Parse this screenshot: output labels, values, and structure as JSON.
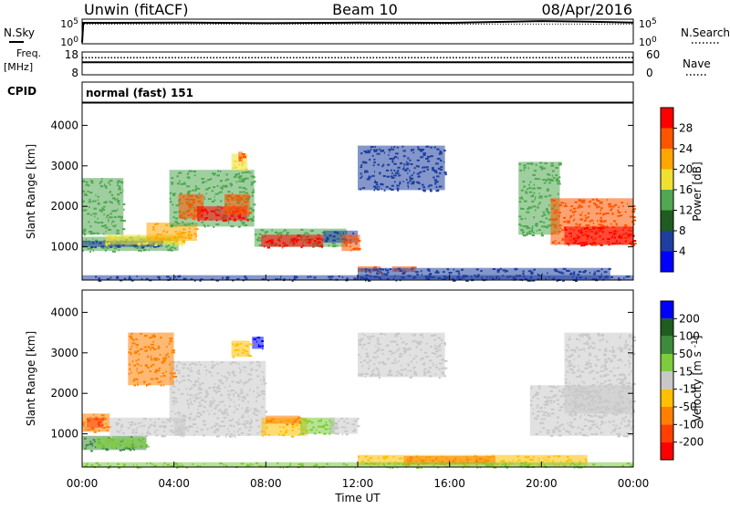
{
  "header": {
    "site": "Unwin (fitACF)",
    "beam": "Beam 10",
    "date": "08/Apr/2016"
  },
  "nsky_panel": {
    "label": "N.Sky",
    "right_label": "N.Search",
    "left_ticks": [
      "10^5",
      "10^0"
    ],
    "right_ticks": [
      "10^5",
      "10^0"
    ]
  },
  "freq_panel": {
    "label_line1": "Freq.",
    "label_line2": "[MHz]",
    "right_label": "Nave",
    "left_ticks": [
      "18",
      "8"
    ],
    "right_ticks": [
      "60",
      "0"
    ]
  },
  "cpid": {
    "label": "CPID",
    "mode": "normal (fast) 151"
  },
  "chart_data": [
    {
      "type": "heatmap",
      "ylabel": "Slant Range [km]",
      "xlabel": "",
      "x_range_hours": [
        0,
        24
      ],
      "ylim": [
        180,
        4550
      ],
      "yticks": [
        "1000",
        "2000",
        "3000",
        "4000"
      ],
      "colorbar": {
        "label": "Power [dB]",
        "ticks": [
          "28",
          "24",
          "20",
          "16",
          "12",
          "8",
          "4"
        ],
        "colors": [
          "#ff0000",
          "#ff5500",
          "#ffa600",
          "#f0e030",
          "#50a850",
          "#1f5c1f",
          "#1f3f9f",
          "#0000ff"
        ]
      }
    },
    {
      "type": "heatmap",
      "ylabel": "Slant Range [km]",
      "xlabel": "Time UT",
      "x_range_hours": [
        0,
        24
      ],
      "ylim": [
        180,
        4550
      ],
      "yticks": [
        "1000",
        "2000",
        "3000",
        "4000"
      ],
      "xticks": [
        "00:00",
        "04:00",
        "08:00",
        "12:00",
        "16:00",
        "20:00",
        "00:00"
      ],
      "colorbar": {
        "label": "Velocity [m s^-1]",
        "ticks": [
          "200",
          "100",
          "50",
          "15",
          "-15",
          "-50",
          "-100",
          "-200"
        ],
        "colors": [
          "#0000ff",
          "#1f5c1f",
          "#3c8c3c",
          "#7ccc3c",
          "#c8c8c8",
          "#ffc000",
          "#ff8000",
          "#ff4000",
          "#ff0000"
        ]
      }
    }
  ],
  "regions": {
    "power": [
      {
        "x": 0.0,
        "x2": 4.2,
        "y1": 900,
        "y2": 1250,
        "color": "#50a850"
      },
      {
        "x": 0.0,
        "x2": 3.5,
        "y1": 1000,
        "y2": 1150,
        "color": "#1f3f9f"
      },
      {
        "x": 1.0,
        "x2": 4.5,
        "y1": 1050,
        "y2": 1300,
        "color": "#f0e030"
      },
      {
        "x": 2.8,
        "x2": 5.0,
        "y1": 1150,
        "y2": 1600,
        "color": "#ffa600"
      },
      {
        "x": 0.0,
        "x2": 1.8,
        "y1": 1300,
        "y2": 2700,
        "color": "#50a850"
      },
      {
        "x": 3.8,
        "x2": 7.5,
        "y1": 1500,
        "y2": 2900,
        "color": "#50a850"
      },
      {
        "x": 4.2,
        "x2": 5.3,
        "y1": 1700,
        "y2": 2300,
        "color": "#ff5500"
      },
      {
        "x": 5.0,
        "x2": 7.2,
        "y1": 1650,
        "y2": 2000,
        "color": "#ff0000"
      },
      {
        "x": 6.2,
        "x2": 7.3,
        "y1": 1800,
        "y2": 2300,
        "color": "#ff5500"
      },
      {
        "x": 6.5,
        "x2": 7.2,
        "y1": 2900,
        "y2": 3300,
        "color": "#f0e030"
      },
      {
        "x": 6.8,
        "x2": 7.0,
        "y1": 3100,
        "y2": 3350,
        "color": "#ff5500"
      },
      {
        "x": 7.5,
        "x2": 11.5,
        "y1": 1000,
        "y2": 1450,
        "color": "#50a850"
      },
      {
        "x": 7.8,
        "x2": 10.5,
        "y1": 1000,
        "y2": 1300,
        "color": "#ff0000"
      },
      {
        "x": 10.5,
        "x2": 12.0,
        "y1": 1100,
        "y2": 1400,
        "color": "#1f3f9f"
      },
      {
        "x": 11.3,
        "x2": 12.1,
        "y1": 900,
        "y2": 1300,
        "color": "#ff5500"
      },
      {
        "x": 12.0,
        "x2": 13.0,
        "y1": 380,
        "y2": 520,
        "color": "#ff5500"
      },
      {
        "x": 13.5,
        "x2": 14.5,
        "y1": 380,
        "y2": 520,
        "color": "#ff5500"
      },
      {
        "x": 12.0,
        "x2": 23.0,
        "y1": 200,
        "y2": 480,
        "color": "#1f3f9f"
      },
      {
        "x": 12.0,
        "x2": 15.8,
        "y1": 2400,
        "y2": 3500,
        "color": "#1f3f9f"
      },
      {
        "x": 19.0,
        "x2": 20.8,
        "y1": 1300,
        "y2": 3100,
        "color": "#50a850"
      },
      {
        "x": 20.4,
        "x2": 24.0,
        "y1": 1050,
        "y2": 2200,
        "color": "#ff5500"
      },
      {
        "x": 21.0,
        "x2": 24.0,
        "y1": 1050,
        "y2": 1500,
        "color": "#ff0000"
      },
      {
        "x": 0.0,
        "x2": 24.0,
        "y1": 180,
        "y2": 300,
        "color": "#1f3f9f"
      }
    ],
    "velocity": [
      {
        "x": 0.0,
        "x2": 1.2,
        "y1": 1050,
        "y2": 1500,
        "color": "#ff8000"
      },
      {
        "x": 0.2,
        "x2": 0.9,
        "y1": 1150,
        "y2": 1400,
        "color": "#ff4000"
      },
      {
        "x": 0.0,
        "x2": 2.8,
        "y1": 600,
        "y2": 950,
        "color": "#3c8c3c"
      },
      {
        "x": 0.6,
        "x2": 2.8,
        "y1": 650,
        "y2": 900,
        "color": "#7ccc3c"
      },
      {
        "x": 1.2,
        "x2": 4.5,
        "y1": 950,
        "y2": 1400,
        "color": "#c8c8c8"
      },
      {
        "x": 3.8,
        "x2": 8.0,
        "y1": 1350,
        "y2": 2800,
        "color": "#c8c8c8"
      },
      {
        "x": 4.0,
        "x2": 8.0,
        "y1": 950,
        "y2": 1350,
        "color": "#c8c8c8"
      },
      {
        "x": 7.8,
        "x2": 9.8,
        "y1": 950,
        "y2": 1400,
        "color": "#ffc000"
      },
      {
        "x": 8.0,
        "x2": 9.5,
        "y1": 1250,
        "y2": 1450,
        "color": "#ff8000"
      },
      {
        "x": 9.5,
        "x2": 11.0,
        "y1": 1000,
        "y2": 1400,
        "color": "#7ccc3c"
      },
      {
        "x": 10.8,
        "x2": 12.0,
        "y1": 1000,
        "y2": 1400,
        "color": "#c8c8c8"
      },
      {
        "x": 7.4,
        "x2": 7.9,
        "y1": 3100,
        "y2": 3400,
        "color": "#0000ff"
      },
      {
        "x": 6.5,
        "x2": 7.3,
        "y1": 2900,
        "y2": 3300,
        "color": "#ffc000"
      },
      {
        "x": 12.0,
        "x2": 22.0,
        "y1": 220,
        "y2": 480,
        "color": "#ffc000"
      },
      {
        "x": 14.0,
        "x2": 18.0,
        "y1": 250,
        "y2": 450,
        "color": "#ff8000"
      },
      {
        "x": 12.0,
        "x2": 15.8,
        "y1": 2400,
        "y2": 3500,
        "color": "#c8c8c8"
      },
      {
        "x": 19.5,
        "x2": 24.0,
        "y1": 950,
        "y2": 2200,
        "color": "#c8c8c8"
      },
      {
        "x": 21.0,
        "x2": 24.0,
        "y1": 1500,
        "y2": 3500,
        "color": "#c8c8c8"
      },
      {
        "x": 2.0,
        "x2": 4.0,
        "y1": 2200,
        "y2": 3500,
        "color": "#ff8000"
      },
      {
        "x": 0.0,
        "x2": 24.0,
        "y1": 180,
        "y2": 300,
        "color": "#7ccc3c"
      }
    ]
  },
  "traces": {
    "nsky": [
      [
        0,
        0.05
      ],
      [
        0.05,
        0.85
      ],
      [
        4.5,
        0.86
      ],
      [
        8,
        0.84
      ],
      [
        12,
        0.86
      ],
      [
        16,
        0.85
      ],
      [
        20,
        0.92
      ],
      [
        22,
        0.9
      ],
      [
        24,
        0.86
      ]
    ],
    "nsearch": [
      [
        0,
        0.05
      ],
      [
        0.05,
        0.8
      ],
      [
        24,
        0.8
      ]
    ],
    "freq": [
      [
        0,
        0.55
      ],
      [
        0.05,
        0.55
      ],
      [
        24,
        0.55
      ]
    ],
    "nave": [
      [
        0,
        0.75
      ],
      [
        24,
        0.75
      ]
    ]
  }
}
